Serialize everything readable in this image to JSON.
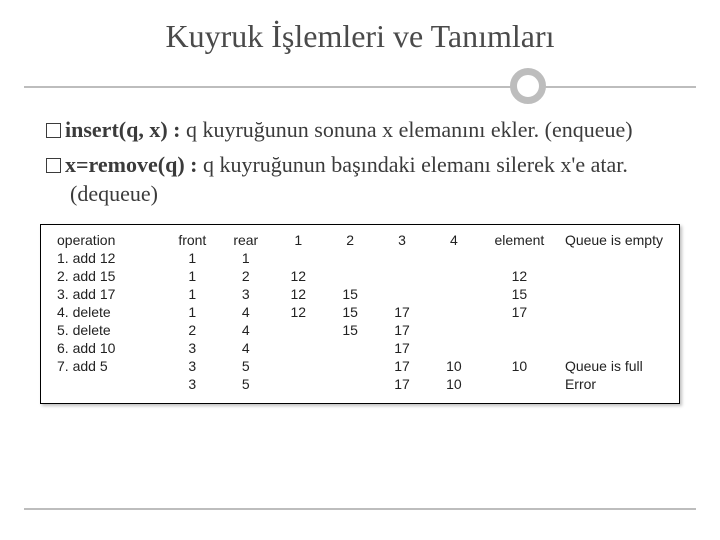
{
  "title": "Kuyruk İşlemleri ve Tanımları",
  "bullets": [
    {
      "head": "insert(q, x) :",
      "tail": " q kuyruğunun sonuna x elemanını ekler. (enqueue)"
    },
    {
      "head": "x=remove(q) :",
      "tail": " q kuyruğunun başındaki elemanı silerek x'e atar. (dequeue)"
    }
  ],
  "table": {
    "headers": [
      "operation",
      "front",
      "rear",
      "1",
      "2",
      "3",
      "4",
      "element",
      ""
    ],
    "status_initial": "Queue is empty",
    "rows": [
      {
        "op": "1. add 12",
        "front": "1",
        "rear": "1",
        "c": [
          "",
          "",
          "",
          ""
        ],
        "el": "",
        "status": ""
      },
      {
        "op": "2. add 15",
        "front": "1",
        "rear": "2",
        "c": [
          "12",
          "",
          "",
          ""
        ],
        "el": "12",
        "status": ""
      },
      {
        "op": "3. add 17",
        "front": "1",
        "rear": "3",
        "c": [
          "12",
          "15",
          "",
          ""
        ],
        "el": "15",
        "status": ""
      },
      {
        "op": "4. delete",
        "front": "1",
        "rear": "4",
        "c": [
          "12",
          "15",
          "17",
          ""
        ],
        "el": "17",
        "status": ""
      },
      {
        "op": "5. delete",
        "front": "2",
        "rear": "4",
        "c": [
          "",
          "15",
          "17",
          ""
        ],
        "el": "",
        "status": ""
      },
      {
        "op": "6. add 10",
        "front": "3",
        "rear": "4",
        "c": [
          "",
          "",
          "17",
          ""
        ],
        "el": "",
        "status": ""
      },
      {
        "op": "7. add 5",
        "front": "3",
        "rear": "5",
        "c": [
          "",
          "",
          "17",
          "10"
        ],
        "el": "10",
        "status": "Queue is full"
      },
      {
        "op": "",
        "front": "3",
        "rear": "5",
        "c": [
          "",
          "",
          "17",
          "10"
        ],
        "el": "",
        "status": "Error"
      }
    ]
  },
  "colors": {
    "text": "#3b3b3b",
    "rule": "#bdbdbd",
    "table_border": "#000000",
    "background": "#ffffff"
  },
  "fonts": {
    "title_size_pt": 24,
    "body_size_pt": 17,
    "table_size_pt": 11
  }
}
